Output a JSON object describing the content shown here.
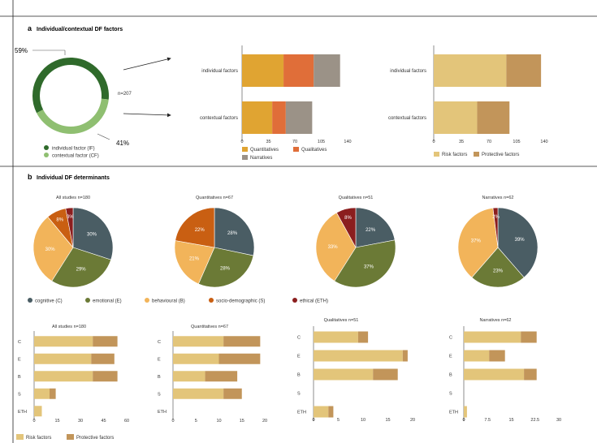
{
  "colors": {
    "dark_green": "#2f6a2b",
    "light_green": "#8fbf71",
    "quant": "#e0a432",
    "qual": "#e06e39",
    "narr": "#9b9287",
    "risk": "#e3c57a",
    "protective": "#c2955a",
    "cognitive": "#4a5d64",
    "emotional": "#6b7a36",
    "behavioural": "#f2b45a",
    "socio": "#c95f12",
    "ethical": "#8b1e1e"
  },
  "panel_a": {
    "letter": "a",
    "title": "Individual/contextual DF factors",
    "donut": {
      "values": [
        59,
        41
      ],
      "label_if": "59%",
      "label_cf": "41%",
      "n_label": "n=207",
      "legend": [
        "individual factor (IF)",
        "contextual factor (CF)"
      ]
    }
  },
  "panel_b": {
    "letter": "b",
    "title": "Individual DF determinants",
    "pie_legend": [
      "cognitive (C)",
      "emotional (E)",
      "behavioural (B)",
      "socio-demographic (S)",
      "ethical (ETH)"
    ],
    "bar_legend": [
      "Risk factors",
      "Protective factors"
    ]
  },
  "chart_data": [
    {
      "id": "a_bar1",
      "type": "bar",
      "orientation": "horizontal",
      "stacked": true,
      "categories": [
        "individual factors",
        "contextual factors"
      ],
      "series": [
        {
          "name": "Quantitatives",
          "values": [
            55,
            40
          ]
        },
        {
          "name": "Qualitatives",
          "values": [
            40,
            18
          ]
        },
        {
          "name": "Narratives",
          "values": [
            35,
            35
          ]
        }
      ],
      "xlim": [
        0,
        140
      ],
      "xticks": [
        "0",
        "35",
        "70",
        "105",
        "140"
      ],
      "legend": [
        "Quantitatives",
        "Qualitatives",
        "Narratives"
      ]
    },
    {
      "id": "a_bar2",
      "type": "bar",
      "orientation": "horizontal",
      "stacked": true,
      "categories": [
        "individual factors",
        "contextual factors"
      ],
      "series": [
        {
          "name": "Risk factors",
          "values": [
            92,
            55
          ]
        },
        {
          "name": "Protective factors",
          "values": [
            44,
            41
          ]
        }
      ],
      "xlim": [
        0,
        140
      ],
      "xticks": [
        "0",
        "35",
        "70",
        "105",
        "140"
      ],
      "legend": [
        "Risk factors",
        "Protective factors"
      ]
    },
    {
      "id": "pie1",
      "type": "pie",
      "title": "All studies n=180",
      "labels": [
        "cognitive (C)",
        "emotional (E)",
        "behavioural (B)",
        "socio-demographic (S)",
        "ethical (ETH)"
      ],
      "values": [
        30,
        29,
        30,
        8,
        3
      ],
      "value_labels": [
        "30%",
        "29%",
        "30%",
        "8%",
        "3%"
      ]
    },
    {
      "id": "pie2",
      "type": "pie",
      "title": "Quantitatives n=67",
      "labels": [
        "cognitive (C)",
        "emotional (E)",
        "behavioural (B)",
        "socio-demographic (S)",
        "ethical (ETH)"
      ],
      "values": [
        28,
        28,
        21,
        22,
        0
      ],
      "value_labels": [
        "28%",
        "28%",
        "21%",
        "22%",
        ""
      ]
    },
    {
      "id": "pie3",
      "type": "pie",
      "title": "Qualitatives n=51",
      "labels": [
        "cognitive (C)",
        "emotional (E)",
        "behavioural (B)",
        "socio-demographic (S)",
        "ethical (ETH)"
      ],
      "values": [
        22,
        37,
        33,
        0,
        8
      ],
      "value_labels": [
        "22%",
        "37%",
        "33%",
        "",
        "8%"
      ]
    },
    {
      "id": "pie4",
      "type": "pie",
      "title": "Narratives n=62",
      "labels": [
        "cognitive (C)",
        "emotional (E)",
        "behavioural (B)",
        "socio-demographic (S)",
        "ethical (ETH)"
      ],
      "values": [
        39,
        23,
        37,
        0,
        2
      ],
      "value_labels": [
        "39%",
        "23%",
        "37%",
        "",
        "2%"
      ]
    },
    {
      "id": "bar_all",
      "type": "bar",
      "orientation": "horizontal",
      "stacked": true,
      "title": "All studies n=180",
      "categories": [
        "C",
        "E",
        "B",
        "S",
        "ETH"
      ],
      "series": [
        {
          "name": "Risk factors",
          "values": [
            38,
            37,
            38,
            10,
            5
          ]
        },
        {
          "name": "Protective factors",
          "values": [
            16,
            15,
            16,
            4,
            0
          ]
        }
      ],
      "xlim": [
        0,
        60
      ],
      "xticks": [
        "0",
        "15",
        "30",
        "45",
        "60"
      ]
    },
    {
      "id": "bar_quant",
      "type": "bar",
      "orientation": "horizontal",
      "stacked": true,
      "title": "Quantitatives n=67",
      "categories": [
        "C",
        "E",
        "B",
        "S",
        "ETH"
      ],
      "series": [
        {
          "name": "Risk factors",
          "values": [
            11,
            10,
            7,
            11,
            0
          ]
        },
        {
          "name": "Protective factors",
          "values": [
            8,
            9,
            7,
            4,
            0
          ]
        }
      ],
      "xlim": [
        0,
        20
      ],
      "xticks": [
        "0",
        "5",
        "10",
        "15",
        "20"
      ]
    },
    {
      "id": "bar_qual",
      "type": "bar",
      "orientation": "horizontal",
      "stacked": true,
      "title": "Qualitatives n=51",
      "categories": [
        "C",
        "E",
        "B",
        "S",
        "ETH"
      ],
      "series": [
        {
          "name": "Risk factors",
          "values": [
            9,
            18,
            12,
            0,
            3
          ]
        },
        {
          "name": "Protective factors",
          "values": [
            2,
            1,
            5,
            0,
            1
          ]
        }
      ],
      "xlim": [
        0,
        20
      ],
      "xticks": [
        "0",
        "5",
        "10",
        "15",
        "20"
      ]
    },
    {
      "id": "bar_narr",
      "type": "bar",
      "orientation": "horizontal",
      "stacked": true,
      "title": "Narratives n=62",
      "categories": [
        "C",
        "E",
        "B",
        "S",
        "ETH"
      ],
      "series": [
        {
          "name": "Risk factors",
          "values": [
            18,
            8,
            19,
            0,
            1
          ]
        },
        {
          "name": "Protective factors",
          "values": [
            5,
            5,
            4,
            0,
            0
          ]
        }
      ],
      "xlim": [
        0,
        30
      ],
      "xticks": [
        "0",
        "7.5",
        "15",
        "22.5",
        "30"
      ]
    }
  ]
}
